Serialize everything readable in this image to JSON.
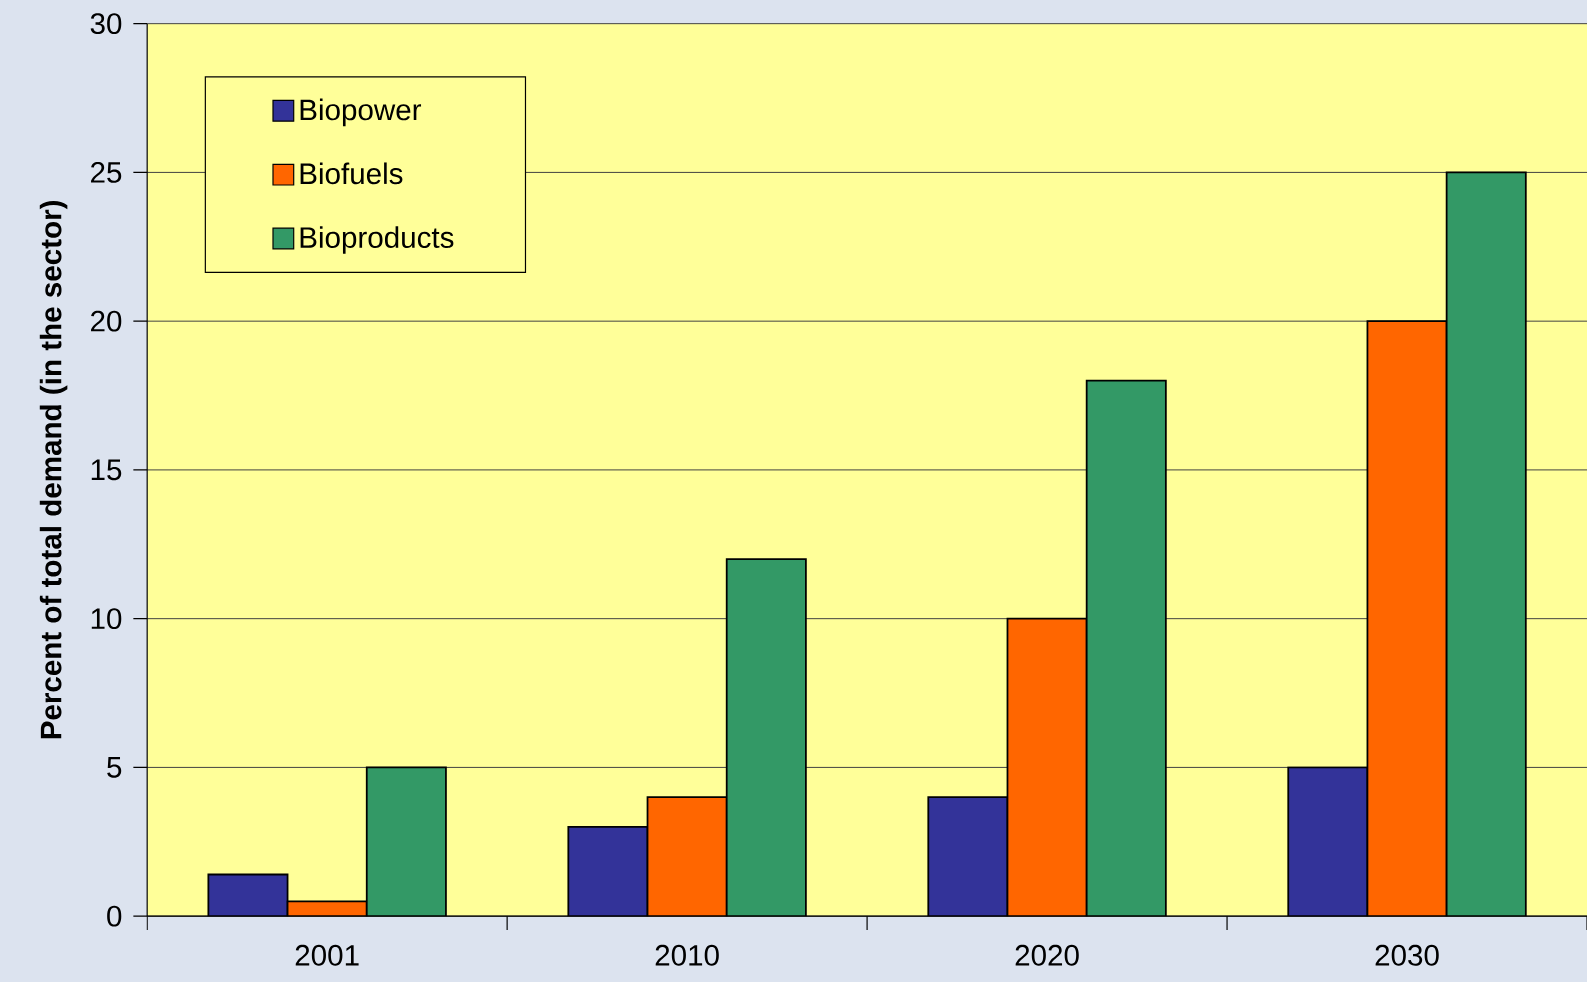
{
  "chart_data": {
    "type": "bar",
    "ylabel": "Percent of total demand (in the sector)",
    "categories": [
      "2001",
      "2010",
      "2020",
      "2030"
    ],
    "series": [
      {
        "name": "Biopower",
        "color": "#333399",
        "values": [
          1.4,
          3,
          4,
          5
        ]
      },
      {
        "name": "Biofuels",
        "color": "#ff6600",
        "values": [
          0.5,
          4,
          10,
          20
        ]
      },
      {
        "name": "Bioproducts",
        "color": "#339966",
        "values": [
          5,
          12,
          18,
          25
        ]
      }
    ],
    "ylim": [
      0,
      30
    ],
    "yticks": [
      0,
      5,
      10,
      15,
      20,
      25,
      30
    ],
    "grid": "y",
    "legend": "top left"
  }
}
